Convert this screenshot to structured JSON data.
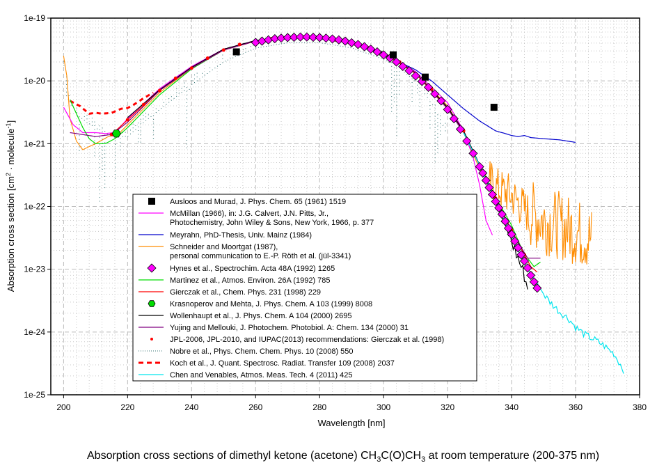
{
  "chart_data": {
    "type": "line",
    "title": "Absorption cross sections of dimethyl ketone (acetone) CH3C(O)CH3 at room temperature (200-375 nm)",
    "title_parts": {
      "pre": "Absorption cross sections of dimethyl ketone (acetone) CH",
      "sub1": "3",
      "mid": "C(O)CH",
      "sub2": "3",
      "post": " at room temperature (200-375 nm)"
    },
    "xlabel": "Wavelength [nm]",
    "ylabel": "Absorption cross section [cm² · molecule⁻¹]",
    "ylabel_parts": {
      "pre": "Absorption cross section [cm",
      "sup1": "2",
      "mid": " · molecule",
      "sup2": "-1",
      "post": "]"
    },
    "xlim": [
      196,
      380
    ],
    "ylim": [
      1e-25,
      1e-19
    ],
    "yscale": "log",
    "grid": true,
    "legend_position": "center-left-bottom",
    "x_ticks": [
      200,
      220,
      240,
      260,
      280,
      300,
      320,
      340,
      360,
      380
    ],
    "x_tick_labels": [
      "200",
      "220",
      "240",
      "260",
      "280",
      "300",
      "320",
      "340",
      "360",
      "380"
    ],
    "y_ticks": [
      -19,
      -20,
      -21,
      -22,
      -23,
      -24,
      -25
    ],
    "y_tick_labels": [
      "1e-19",
      "1e-20",
      "1e-21",
      "1e-22",
      "1e-23",
      "1e-24",
      "1e-25"
    ],
    "series": [
      {
        "name": "Ausloos and Murad, J. Phys. Chem. 65 (1961) 1519",
        "color": "#000000",
        "style": "square",
        "x": [
          254,
          303,
          313,
          334.5
        ],
        "y": [
          2.9e-20,
          2.6e-20,
          1.15e-20,
          3.8e-21
        ]
      },
      {
        "name": "McMillan (1966), in: J.G. Calvert, J.N. Pitts, Jr., Photochemistry, John Wiley & Sons, New York, 1966, p. 377",
        "color": "#ff00ff",
        "style": "line",
        "x": [
          200,
          203,
          206,
          210,
          213,
          216,
          220,
          230,
          240,
          250,
          260,
          270,
          280,
          290,
          300,
          310,
          320,
          325,
          328,
          330,
          332,
          334
        ],
        "y": [
          3.8e-21,
          2e-21,
          1.5e-21,
          1.5e-21,
          1.45e-21,
          1.5e-21,
          2.5e-21,
          7.5e-21,
          1.7e-20,
          3.2e-20,
          4.4e-20,
          4.9e-20,
          4.8e-20,
          4e-20,
          2.8e-20,
          1.4e-20,
          4.5e-21,
          1.6e-21,
          6e-22,
          2.2e-22,
          6e-23,
          3.5e-23
        ]
      },
      {
        "name": "Meyrahn, PhD-Thesis, Univ. Mainz (1984)",
        "color": "#0000cc",
        "style": "line",
        "x": [
          300,
          310,
          315,
          320,
          325,
          330,
          335,
          338,
          340,
          342,
          344,
          346,
          350,
          355,
          360
        ],
        "y": [
          2.6e-20,
          1.5e-20,
          1e-20,
          6e-21,
          3.6e-21,
          2.3e-21,
          1.6e-21,
          1.45e-21,
          1.35e-21,
          1.3e-21,
          1.35e-21,
          1.25e-21,
          1.2e-21,
          1.15e-21,
          1.05e-21
        ]
      },
      {
        "name": "Schneider and Moortgat (1987), personal communication to E.-P. Röth et al. (jül-3341)",
        "color": "#ff8c00",
        "style": "noisy",
        "x": [
          200,
          201,
          202,
          204,
          206,
          208,
          210,
          214,
          217,
          220,
          230,
          240,
          250,
          260,
          270,
          280,
          290,
          300,
          310,
          320,
          325,
          330,
          335,
          340,
          345,
          350,
          355,
          360,
          365
        ],
        "y": [
          2.5e-20,
          1.2e-20,
          2.5e-21,
          1.1e-21,
          8e-22,
          9e-22,
          1e-21,
          1.3e-21,
          1.4e-21,
          2e-21,
          6.5e-21,
          1.6e-20,
          3.1e-20,
          4.3e-20,
          4.9e-20,
          4.8e-20,
          4e-20,
          2.8e-20,
          1.35e-20,
          4e-21,
          1.5e-21,
          4e-22,
          2e-22,
          1.5e-22,
          8e-23,
          6e-23,
          5e-23,
          4e-23,
          3e-23
        ]
      },
      {
        "name": "Hynes et al., Spectrochim. Acta 48A (1992) 1265",
        "color": "#ff00ff",
        "style": "diamond",
        "x": [
          260,
          262,
          264,
          266,
          268,
          270,
          272,
          274,
          276,
          278,
          280,
          282,
          284,
          286,
          288,
          290,
          292,
          294,
          296,
          298,
          300,
          302,
          304,
          306,
          308,
          310,
          312,
          314,
          316,
          318,
          320,
          322,
          324,
          326,
          328,
          330,
          331,
          332,
          333,
          334,
          335,
          336,
          337,
          338,
          339,
          340,
          341,
          342,
          343,
          344,
          345,
          346,
          347,
          348
        ],
        "y": [
          4.1e-20,
          4.3e-20,
          4.5e-20,
          4.7e-20,
          4.8e-20,
          4.9e-20,
          4.95e-20,
          5e-20,
          5e-20,
          4.95e-20,
          4.9e-20,
          4.8e-20,
          4.65e-20,
          4.5e-20,
          4.3e-20,
          4.05e-20,
          3.8e-20,
          3.5e-20,
          3.2e-20,
          2.9e-20,
          2.6e-20,
          2.3e-20,
          2e-20,
          1.7e-20,
          1.45e-20,
          1.2e-20,
          9.8e-21,
          7.9e-21,
          6.2e-21,
          4.8e-21,
          3.5e-21,
          2.5e-21,
          1.7e-21,
          1.1e-21,
          7e-22,
          4.3e-22,
          3.4e-22,
          2.6e-22,
          2e-22,
          1.55e-22,
          1.2e-22,
          9.5e-23,
          7.5e-23,
          5.8e-23,
          4.5e-23,
          3.6e-23,
          2.8e-23,
          2.2e-23,
          1.7e-23,
          1.35e-23,
          1.05e-23,
          8e-24,
          6.3e-24,
          5e-24
        ]
      },
      {
        "name": "Martinez et al., Atmos. Environ. 26A (1992) 785",
        "color": "#00dd00",
        "style": "line",
        "x": [
          202,
          204,
          206,
          208,
          210,
          213,
          216,
          220,
          230,
          240,
          250,
          260,
          270,
          280,
          290,
          300,
          310,
          320,
          325,
          330,
          335,
          340,
          343,
          345,
          347,
          349
        ],
        "y": [
          5e-21,
          3e-21,
          1.8e-21,
          1.2e-21,
          1e-21,
          1e-21,
          1.2e-21,
          1.8e-21,
          6e-21,
          1.55e-20,
          3.1e-20,
          4.3e-20,
          4.9e-20,
          4.8e-20,
          4e-20,
          2.8e-20,
          1.35e-20,
          3.7e-21,
          1.5e-21,
          4.5e-22,
          1.4e-22,
          5e-23,
          2.2e-23,
          1.5e-23,
          1.1e-23,
          1.3e-23
        ]
      },
      {
        "name": "Gierczak et al., Chem. Phys. 231 (1998) 229",
        "color": "#ff0000",
        "style": "line",
        "x": [
          215,
          220,
          230,
          240,
          250,
          260,
          270,
          280,
          290,
          300,
          310,
          320,
          325,
          330,
          335,
          340,
          344,
          346,
          348
        ],
        "y": [
          1.4e-21,
          2.4e-21,
          7e-21,
          1.6e-20,
          3.1e-20,
          4.3e-20,
          4.9e-20,
          4.8e-20,
          4e-20,
          2.75e-20,
          1.3e-20,
          3.6e-21,
          1.6e-21,
          4.5e-22,
          1.35e-22,
          4.2e-23,
          1.7e-23,
          1.1e-23,
          9e-24
        ]
      },
      {
        "name": "Krasnoperov and Mehta, J. Phys. Chem. A 103 (1999) 8008",
        "color": "#00dd00",
        "style": "hexagon",
        "x": [
          216.5
        ],
        "y": [
          1.45e-21
        ]
      },
      {
        "name": "Wollenhaupt et al., J. Phys. Chem. A 104 (2000) 2695",
        "color": "#000000",
        "style": "line",
        "x": [
          220,
          230,
          240,
          250,
          260,
          270,
          280,
          290,
          300,
          310,
          320,
          325,
          330,
          335,
          338,
          340,
          342,
          344,
          345
        ],
        "y": [
          2.6e-21,
          7.2e-21,
          1.65e-20,
          3.2e-20,
          4.4e-20,
          5e-20,
          4.9e-20,
          4.1e-20,
          2.85e-20,
          1.35e-20,
          3.8e-21,
          1.6e-21,
          4.6e-22,
          1.2e-22,
          5e-23,
          2.8e-23,
          1.5e-23,
          8e-24,
          5e-24
        ]
      },
      {
        "name": "Yujing and Mellouki, J. Photochem. Photobiol. A: Chem. 134 (2000) 31",
        "color": "#800080",
        "style": "line",
        "x": [
          202,
          210,
          215,
          220,
          230,
          240,
          250,
          260,
          270,
          280,
          290,
          300,
          310,
          320,
          325,
          330,
          335,
          340,
          345,
          349
        ],
        "y": [
          1.5e-21,
          1.3e-21,
          1.4e-21,
          2.2e-21,
          7e-21,
          1.6e-20,
          3.1e-20,
          4.3e-20,
          4.9e-20,
          4.8e-20,
          4e-20,
          2.8e-20,
          1.35e-20,
          3.6e-21,
          1.5e-21,
          4.5e-22,
          1.3e-22,
          4e-23,
          1.5e-23,
          1.5e-23
        ]
      },
      {
        "name": "JPL-2006, JPL-2010, and IUPAC(2013) recommendations: Gierczak et al. (1998)",
        "color": "#ff0000",
        "style": "dot",
        "x": [
          215,
          220,
          225,
          230,
          235,
          240,
          245,
          250,
          255,
          260,
          265,
          270,
          275,
          280,
          285,
          290,
          295,
          300,
          305,
          310,
          315,
          320,
          325,
          330,
          335,
          340,
          344
        ],
        "y": [
          1.4e-21,
          2.4e-21,
          4.2e-21,
          7e-21,
          1.1e-20,
          1.6e-20,
          2.3e-20,
          3.1e-20,
          3.8e-20,
          4.3e-20,
          4.7e-20,
          4.9e-20,
          5e-20,
          4.8e-20,
          4.5e-20,
          4e-20,
          3.4e-20,
          2.75e-20,
          2e-20,
          1.3e-20,
          7.5e-21,
          3.6e-21,
          1.6e-21,
          4.5e-22,
          1.35e-22,
          4.2e-23,
          1.7e-23
        ]
      },
      {
        "name": "Nobre et al., Phys. Chem. Chem. Phys. 10 (2008) 550",
        "color": "#2f6f6f",
        "style": "dotted",
        "x": [
          200,
          202,
          205,
          210,
          215,
          220,
          225,
          230,
          240,
          250,
          260,
          270,
          280,
          290,
          300,
          305,
          310,
          315,
          320
        ],
        "y": [
          2e-20,
          5e-21,
          3e-21,
          2e-21,
          1.5e-21,
          1.5e-21,
          2.5e-21,
          4e-21,
          1e-20,
          2.3e-20,
          3.8e-20,
          4.6e-20,
          4.6e-20,
          3.8e-20,
          2.5e-20,
          1.8e-20,
          1.1e-20,
          5e-21,
          1.5e-21
        ]
      },
      {
        "name": "Koch et al., J. Quant. Spectrosc. Radiat. Transfer 109 (2008) 2037",
        "color": "#ff0000",
        "style": "dashed",
        "x": [
          202,
          205,
          208,
          210,
          212,
          215,
          218,
          220,
          222,
          225,
          228
        ],
        "y": [
          4.8e-21,
          4e-21,
          3e-21,
          3.1e-21,
          3e-21,
          3.1e-21,
          3.6e-21,
          3.7e-21,
          4.2e-21,
          5.3e-21,
          6.5e-21
        ]
      },
      {
        "name": "Chen and Venables, Atmos. Meas. Tech. 4 (2011) 425",
        "color": "#00e5ee",
        "style": "line",
        "x": [
          325,
          330,
          335,
          338,
          340,
          342,
          345,
          348,
          350,
          352,
          355,
          358,
          360,
          363,
          366,
          369,
          372,
          375
        ],
        "y": [
          1.5e-21,
          4.5e-22,
          1.3e-22,
          5.5e-23,
          3.5e-23,
          2e-23,
          1e-23,
          6e-24,
          4e-24,
          3e-24,
          2.1e-24,
          1.6e-24,
          1.2e-24,
          9e-25,
          7.5e-25,
          6e-25,
          4.5e-25,
          2.5e-25
        ]
      }
    ]
  }
}
